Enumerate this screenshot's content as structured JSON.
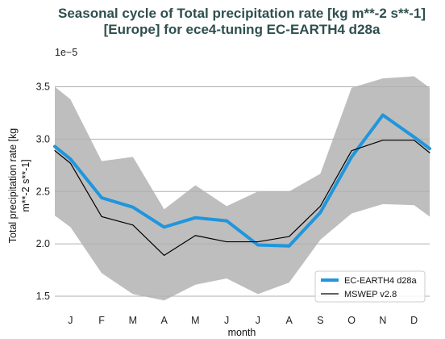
{
  "chart_data": {
    "type": "line",
    "title_line1": "Seasonal cycle of Total precipitation rate [kg m**-2 s**-1]",
    "title_line2": "[Europe] for ece4-tuning EC-EARTH4 d28a",
    "xlabel": "month",
    "ylabel_line1": "Total precipitation rate [kg",
    "ylabel_line2": "m**-2 s**-1]",
    "y_offset_label": "1e−5",
    "categories": [
      "J",
      "F",
      "M",
      "A",
      "M",
      "J",
      "J",
      "A",
      "S",
      "O",
      "N",
      "D"
    ],
    "x_range": [
      0.5,
      12.5
    ],
    "y_range": [
      1.4,
      3.55
    ],
    "y_ticks": [
      1.5,
      2.0,
      2.5,
      3.0,
      3.5
    ],
    "y_tick_labels": [
      "1.5",
      "2.0",
      "2.5",
      "3.0",
      "3.5"
    ],
    "grid": "horizontal",
    "legend_position": "lower right",
    "band": {
      "color": "#bebebe",
      "x": [
        0.5,
        1,
        2,
        3,
        4,
        5,
        6,
        7,
        8,
        9,
        10,
        11,
        12,
        12.5
      ],
      "upper": [
        3.5,
        3.38,
        2.79,
        2.83,
        2.33,
        2.56,
        2.36,
        2.5,
        2.5,
        2.67,
        3.49,
        3.58,
        3.6,
        3.49
      ],
      "lower": [
        2.27,
        2.16,
        1.72,
        1.52,
        1.46,
        1.61,
        1.67,
        1.52,
        1.63,
        2.04,
        2.29,
        2.38,
        2.37,
        2.26
      ]
    },
    "series": [
      {
        "name": "EC-EARTH4 d28a",
        "color": "#1f96dd",
        "width": 4,
        "x": [
          0.5,
          1,
          2,
          3,
          4,
          5,
          6,
          7,
          8,
          9,
          10,
          11,
          12,
          12.5
        ],
        "values": [
          2.93,
          2.81,
          2.44,
          2.35,
          2.16,
          2.25,
          2.22,
          1.99,
          1.98,
          2.3,
          2.83,
          3.23,
          3.02,
          2.91
        ]
      },
      {
        "name": "MSWEP v2.8",
        "color": "#000000",
        "width": 1.2,
        "x": [
          0.5,
          1,
          2,
          3,
          4,
          5,
          6,
          7,
          8,
          9,
          10,
          11,
          12,
          12.5
        ],
        "values": [
          2.89,
          2.77,
          2.26,
          2.18,
          1.89,
          2.08,
          2.02,
          2.02,
          2.07,
          2.36,
          2.89,
          2.99,
          2.99,
          2.87
        ]
      }
    ]
  }
}
